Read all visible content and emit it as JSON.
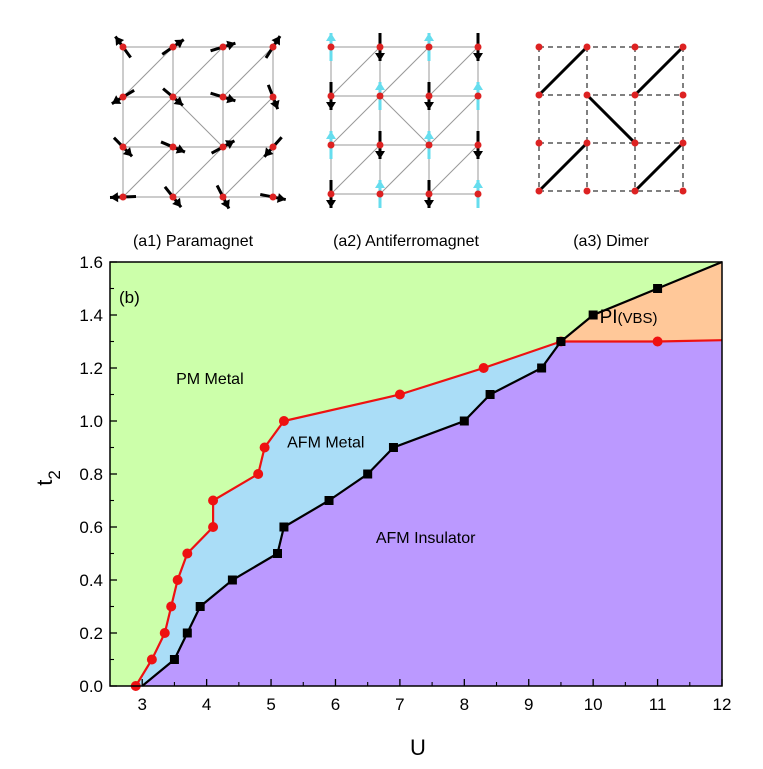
{
  "insets": [
    {
      "caption": "(a1) Paramagnet"
    },
    {
      "caption": "(a2) Antiferromagnet"
    },
    {
      "caption": "(a3) Dimer"
    }
  ],
  "chart_data": {
    "type": "line",
    "panel_label": "(b)",
    "xlabel": "U",
    "ylabel_main": "t",
    "ylabel_sub": "2",
    "xlim": [
      2.5,
      12
    ],
    "ylim": [
      0,
      1.6
    ],
    "xticks": [
      3,
      4,
      5,
      6,
      7,
      8,
      9,
      10,
      11,
      12
    ],
    "yticks": [
      0.0,
      0.2,
      0.4,
      0.6,
      0.8,
      1.0,
      1.2,
      1.4,
      1.6
    ],
    "ytick_labels": [
      "0.0",
      "0.2",
      "0.4",
      "0.6",
      "0.8",
      "1.0",
      "1.2",
      "1.4",
      "1.6"
    ],
    "regions": [
      {
        "label": "PM Metal",
        "color": "#ccffaa",
        "label_at": [
          4.05,
          1.14
        ]
      },
      {
        "label": "AFM Metal",
        "color": "#aaddf7",
        "label_at": [
          5.85,
          0.9
        ]
      },
      {
        "label": "AFM Insulator",
        "color": "#bb99ff",
        "label_at": [
          7.4,
          0.54
        ]
      },
      {
        "label_main": "PI",
        "label_sub": "(VBS)",
        "color": "#ffc899",
        "label_at": [
          10.55,
          1.37
        ]
      }
    ],
    "series": [
      {
        "marker": "circle",
        "color": "#ee1111",
        "x": [
          2.9,
          3.15,
          3.35,
          3.45,
          3.55,
          3.7,
          4.1,
          4.1,
          4.8,
          4.9,
          5.2,
          7.0,
          8.3,
          9.5
        ],
        "y": [
          0.0,
          0.1,
          0.2,
          0.3,
          0.4,
          0.5,
          0.6,
          0.7,
          0.8,
          0.9,
          1.0,
          1.1,
          1.2,
          1.3
        ]
      },
      {
        "marker": "square",
        "color": "#000000",
        "x": [
          3.0,
          3.5,
          3.7,
          3.9,
          4.4,
          5.1,
          5.2,
          5.9,
          6.5,
          6.9,
          8.0,
          8.4,
          9.2,
          9.5,
          10.0,
          11.0,
          12.0
        ],
        "y": [
          0.0,
          0.1,
          0.2,
          0.3,
          0.4,
          0.5,
          0.6,
          0.7,
          0.8,
          0.9,
          1.0,
          1.1,
          1.2,
          1.3,
          1.4,
          1.5,
          1.6
        ]
      },
      {
        "marker": "circle",
        "color": "#ee1111",
        "x": [
          9.5,
          11.0,
          12.0
        ],
        "y": [
          1.3,
          1.3,
          1.305
        ]
      }
    ]
  }
}
